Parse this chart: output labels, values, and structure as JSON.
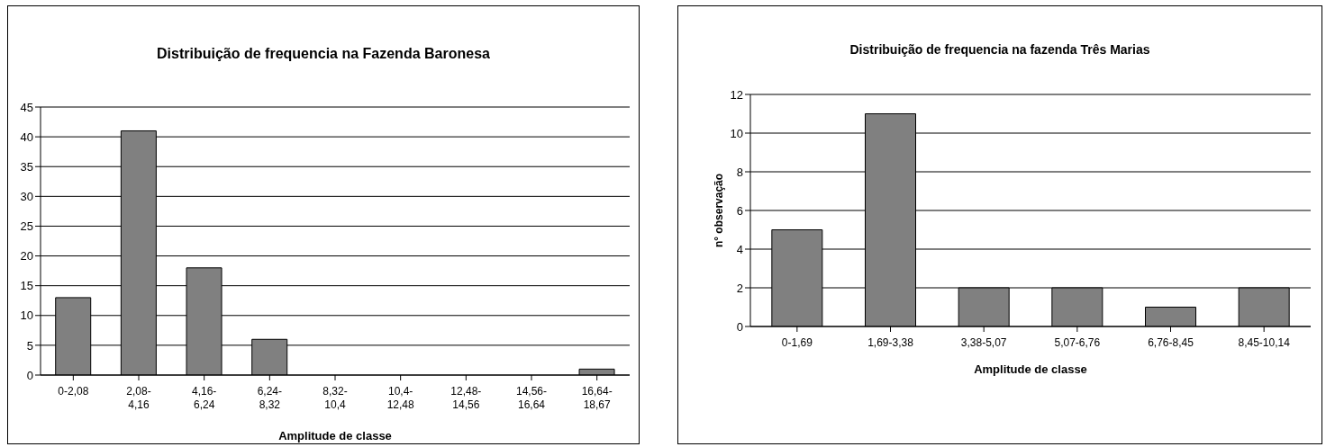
{
  "chart_data": [
    {
      "type": "bar",
      "title": "Distribuição de frequencia na Fazenda Baronesa",
      "xlabel": "Amplitude de classe",
      "categories": [
        "0-2,08",
        "2,08-4,16",
        "4,16-6,24",
        "6,24-8,32",
        "8,32-10,4",
        "10,4-12,48",
        "12,48-14,56",
        "14,56-16,64",
        "16,64-18,67"
      ],
      "values": [
        13,
        41,
        18,
        6,
        0,
        0,
        0,
        0,
        1
      ],
      "color": "#808080",
      "ylim": [
        0,
        45
      ],
      "yticks": [
        0,
        5,
        10,
        15,
        20,
        25,
        30,
        35,
        40,
        45
      ],
      "grid": "y",
      "legend": false
    },
    {
      "type": "bar",
      "title": "Distribuição de frequencia na fazenda Três Marias",
      "xlabel": "Amplitude de classe",
      "ylabel": "n° observação",
      "categories": [
        "0-1,69",
        "1,69-3,38",
        "3,38-5,07",
        "5,07-6,76",
        "6,76-8,45",
        "8,45-10,14"
      ],
      "values": [
        5,
        11,
        2,
        2,
        1,
        2
      ],
      "color": "#808080",
      "ylim": [
        0,
        12
      ],
      "yticks": [
        0,
        2,
        4,
        6,
        8,
        10,
        12
      ],
      "grid": "y",
      "legend": false
    }
  ]
}
